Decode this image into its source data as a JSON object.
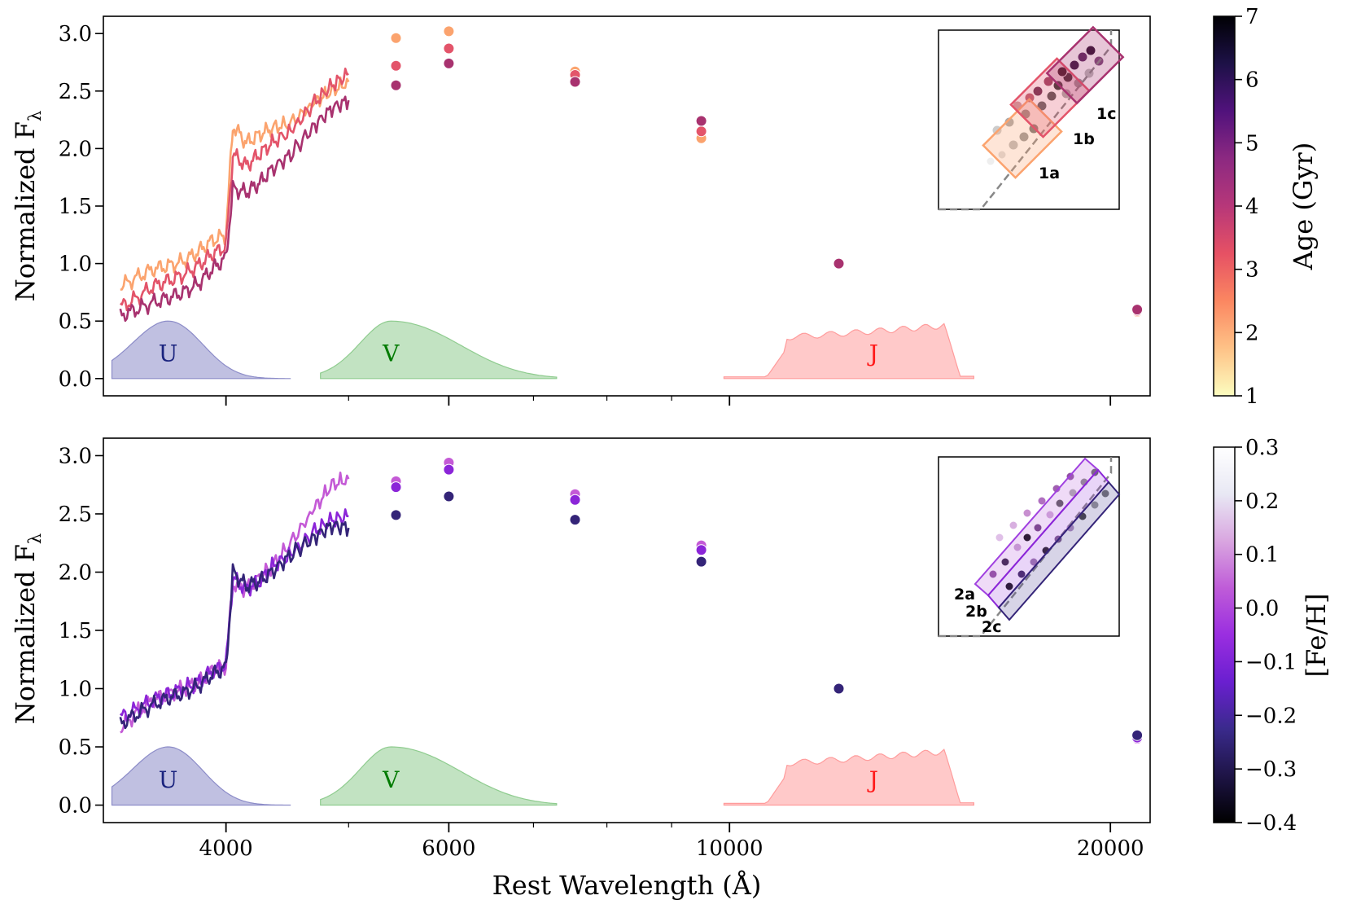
{
  "figure": {
    "xlabel": "Rest Wavelength (Å)",
    "ylabel_main": "Normalized F",
    "ylabel_sub": "λ",
    "xticks": [
      4000,
      6000,
      10000,
      20000
    ],
    "xtick_labels": [
      "4000",
      "6000",
      "10000",
      "20000"
    ],
    "xlim": [
      3200,
      21500
    ],
    "x_scale": "log",
    "ylim": [
      -0.15,
      3.15
    ],
    "yticks": [
      0.0,
      0.5,
      1.0,
      1.5,
      2.0,
      2.5,
      3.0
    ],
    "ytick_labels": [
      "0.0",
      "0.5",
      "1.0",
      "1.5",
      "2.0",
      "2.5",
      "3.0"
    ]
  },
  "chart_data": [
    {
      "type": "line",
      "panel": "top",
      "colorbar": {
        "label": "Age (Gyr)",
        "range": [
          1,
          7
        ],
        "ticks": [
          1,
          2,
          3,
          4,
          5,
          6,
          7
        ],
        "tick_labels": [
          "1",
          "2",
          "3",
          "4",
          "5",
          "6",
          "7"
        ],
        "colormap": "magma",
        "colors": [
          "#fcfdbf",
          "#fec287",
          "#fb8761",
          "#e65164",
          "#b73779",
          "#8c2981",
          "#51127c",
          "#1d1147",
          "#000004"
        ]
      },
      "filters": [
        {
          "label": "U",
          "color": "#1a237e",
          "fill": "#8c8cc8",
          "range": [
            3250,
            4500
          ],
          "peak_wave": 3600,
          "peak": 0.5
        },
        {
          "label": "V",
          "color": "#007a00",
          "fill": "#8fcc8f",
          "range": [
            4750,
            7300
          ],
          "peak_wave": 5400,
          "peak": 0.5
        },
        {
          "label": "J",
          "color": "#ff1a1a",
          "fill": "#ff9c9c",
          "range": [
            9900,
            15600
          ],
          "peak_wave": 13000,
          "peak": 0.5
        }
      ],
      "series": [
        {
          "color": "#fba36e",
          "spectrum": [
            [
              3300,
              0.8
            ],
            [
              3400,
              0.88
            ],
            [
              3500,
              0.95
            ],
            [
              3600,
              0.98
            ],
            [
              3700,
              1.02
            ],
            [
              3800,
              1.1
            ],
            [
              3900,
              1.2
            ],
            [
              4000,
              1.25
            ],
            [
              4050,
              2.2
            ],
            [
              4150,
              2.05
            ],
            [
              4250,
              2.12
            ],
            [
              4350,
              2.18
            ],
            [
              4500,
              2.22
            ],
            [
              4700,
              2.4
            ],
            [
              4850,
              2.5
            ],
            [
              5000,
              2.58
            ]
          ],
          "photometry": [
            [
              5450,
              2.96
            ],
            [
              6000,
              3.02
            ],
            [
              7550,
              2.67
            ],
            [
              9500,
              2.09
            ],
            [
              12200,
              1.0
            ],
            [
              21000,
              0.58
            ]
          ]
        },
        {
          "color": "#e3546a",
          "spectrum": [
            [
              3300,
              0.62
            ],
            [
              3400,
              0.7
            ],
            [
              3500,
              0.8
            ],
            [
              3600,
              0.85
            ],
            [
              3700,
              0.9
            ],
            [
              3800,
              0.98
            ],
            [
              3900,
              1.08
            ],
            [
              4000,
              1.15
            ],
            [
              4050,
              1.95
            ],
            [
              4150,
              1.85
            ],
            [
              4250,
              1.95
            ],
            [
              4350,
              2.05
            ],
            [
              4500,
              2.15
            ],
            [
              4700,
              2.4
            ],
            [
              4850,
              2.55
            ],
            [
              5000,
              2.65
            ]
          ],
          "photometry": [
            [
              5450,
              2.72
            ],
            [
              6000,
              2.87
            ],
            [
              7550,
              2.64
            ],
            [
              9500,
              2.15
            ],
            [
              12200,
              1.0
            ],
            [
              21000,
              0.59
            ]
          ]
        },
        {
          "color": "#a8326f",
          "spectrum": [
            [
              3300,
              0.55
            ],
            [
              3400,
              0.6
            ],
            [
              3500,
              0.66
            ],
            [
              3600,
              0.7
            ],
            [
              3700,
              0.75
            ],
            [
              3800,
              0.82
            ],
            [
              3900,
              0.95
            ],
            [
              4000,
              1.05
            ],
            [
              4050,
              1.65
            ],
            [
              4150,
              1.62
            ],
            [
              4250,
              1.7
            ],
            [
              4350,
              1.82
            ],
            [
              4500,
              1.95
            ],
            [
              4700,
              2.2
            ],
            [
              4850,
              2.35
            ],
            [
              5000,
              2.42
            ]
          ],
          "photometry": [
            [
              5450,
              2.55
            ],
            [
              6000,
              2.74
            ],
            [
              7550,
              2.58
            ],
            [
              9500,
              2.24
            ],
            [
              12200,
              1.0
            ],
            [
              21000,
              0.6
            ]
          ]
        }
      ],
      "inset_labels": [
        "1a",
        "1b",
        "1c"
      ]
    },
    {
      "type": "line",
      "panel": "bottom",
      "colorbar": {
        "label": "[Fe/H]",
        "range": [
          -0.4,
          0.3
        ],
        "ticks": [
          -0.4,
          -0.3,
          -0.2,
          -0.1,
          0.0,
          0.1,
          0.2,
          0.3
        ],
        "tick_labels": [
          "−0.4",
          "−0.3",
          "−0.2",
          "−0.1",
          "0.0",
          "0.1",
          "0.2",
          "0.3"
        ],
        "colormap": "purple",
        "colors": [
          "#000000",
          "#1e1446",
          "#3a2a8c",
          "#6a1fd0",
          "#9a2ee0",
          "#bf5cd8",
          "#d9a6e0",
          "#e8e8f4",
          "#ffffff"
        ]
      },
      "filters": [
        {
          "label": "U",
          "color": "#1a237e",
          "fill": "#8c8cc8",
          "range": [
            3250,
            4500
          ],
          "peak_wave": 3600,
          "peak": 0.5
        },
        {
          "label": "V",
          "color": "#007a00",
          "fill": "#8fcc8f",
          "range": [
            4750,
            7300
          ],
          "peak_wave": 5400,
          "peak": 0.5
        },
        {
          "label": "J",
          "color": "#ff1a1a",
          "fill": "#ff9c9c",
          "range": [
            9900,
            15600
          ],
          "peak_wave": 13000,
          "peak": 0.5
        }
      ],
      "series": [
        {
          "color": "#c45ad6",
          "spectrum": [
            [
              3300,
              0.65
            ],
            [
              3400,
              0.8
            ],
            [
              3500,
              0.9
            ],
            [
              3600,
              0.95
            ],
            [
              3700,
              1.0
            ],
            [
              3800,
              1.05
            ],
            [
              3900,
              1.15
            ],
            [
              4000,
              1.2
            ],
            [
              4050,
              1.9
            ],
            [
              4150,
              1.85
            ],
            [
              4250,
              1.95
            ],
            [
              4350,
              2.05
            ],
            [
              4500,
              2.25
            ],
            [
              4700,
              2.55
            ],
            [
              4850,
              2.75
            ],
            [
              5000,
              2.8
            ]
          ],
          "photometry": [
            [
              5450,
              2.78
            ],
            [
              6000,
              2.94
            ],
            [
              7550,
              2.67
            ],
            [
              9500,
              2.23
            ],
            [
              12200,
              1.0
            ],
            [
              21000,
              0.57
            ]
          ]
        },
        {
          "color": "#8b25d8",
          "spectrum": [
            [
              3300,
              0.75
            ],
            [
              3400,
              0.82
            ],
            [
              3500,
              0.9
            ],
            [
              3600,
              0.95
            ],
            [
              3700,
              1.0
            ],
            [
              3800,
              1.05
            ],
            [
              3900,
              1.15
            ],
            [
              4000,
              1.2
            ],
            [
              4050,
              1.95
            ],
            [
              4150,
              1.85
            ],
            [
              4250,
              1.92
            ],
            [
              4350,
              2.05
            ],
            [
              4500,
              2.15
            ],
            [
              4700,
              2.35
            ],
            [
              4850,
              2.45
            ],
            [
              5000,
              2.48
            ]
          ],
          "photometry": [
            [
              5450,
              2.73
            ],
            [
              6000,
              2.88
            ],
            [
              7550,
              2.62
            ],
            [
              9500,
              2.19
            ],
            [
              12200,
              1.0
            ],
            [
              21000,
              0.58
            ]
          ]
        },
        {
          "color": "#342478",
          "spectrum": [
            [
              3300,
              0.7
            ],
            [
              3400,
              0.78
            ],
            [
              3500,
              0.86
            ],
            [
              3600,
              0.92
            ],
            [
              3700,
              0.96
            ],
            [
              3800,
              1.02
            ],
            [
              3900,
              1.12
            ],
            [
              4000,
              1.18
            ],
            [
              4050,
              2.0
            ],
            [
              4150,
              1.88
            ],
            [
              4250,
              1.92
            ],
            [
              4350,
              2.0
            ],
            [
              4500,
              2.15
            ],
            [
              4700,
              2.3
            ],
            [
              4850,
              2.4
            ],
            [
              5000,
              2.38
            ]
          ],
          "photometry": [
            [
              5450,
              2.49
            ],
            [
              6000,
              2.65
            ],
            [
              7550,
              2.45
            ],
            [
              9500,
              2.09
            ],
            [
              12200,
              1.0
            ],
            [
              21000,
              0.6
            ]
          ]
        }
      ],
      "inset_labels": [
        "2a",
        "2b",
        "2c"
      ]
    }
  ]
}
